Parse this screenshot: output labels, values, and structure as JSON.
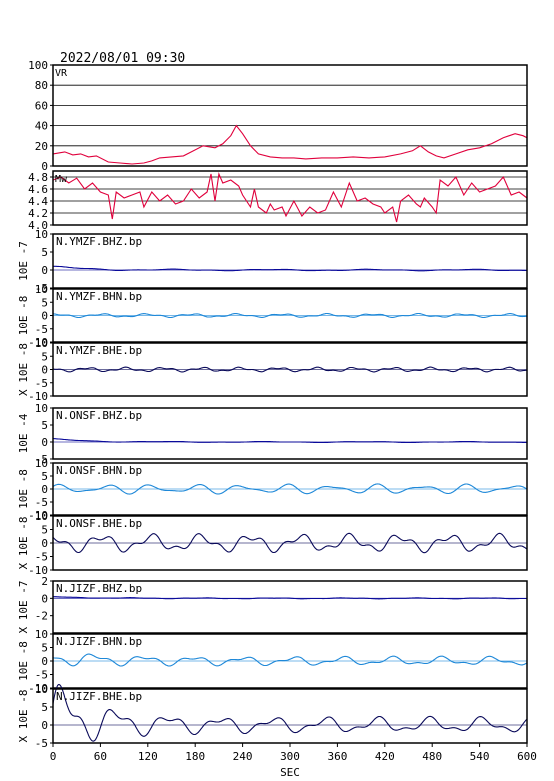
{
  "header": {
    "timestamp": "2022/08/01 09:30"
  },
  "x_axis": {
    "label": "SEC",
    "ticks": [
      0,
      60,
      120,
      180,
      240,
      300,
      360,
      420,
      480,
      540,
      600
    ],
    "range": [
      0,
      600
    ]
  },
  "colors": {
    "frame": "#000000",
    "grid": "#000000",
    "vr_mw": "#e0003c",
    "bhz": "#0a0a9a",
    "bhn": "#1e88d8",
    "bhe": "#0a0a5a"
  },
  "chart_data": [
    {
      "type": "line",
      "label": "VR",
      "ylim": [
        0,
        100
      ],
      "yticks": [
        "0",
        "20",
        "40",
        "60",
        "80",
        "100"
      ],
      "grid": true,
      "color_key": "vr_mw",
      "series": [
        {
          "x": [
            0,
            15,
            25,
            35,
            45,
            55,
            70,
            85,
            100,
            115,
            125,
            135,
            150,
            165,
            175,
            190,
            205,
            215,
            225,
            232,
            240,
            250,
            260,
            275,
            290,
            305,
            320,
            340,
            360,
            380,
            400,
            420,
            440,
            455,
            465,
            475,
            485,
            495,
            510,
            525,
            540,
            555,
            570,
            585,
            595,
            600
          ],
          "y": [
            12,
            14,
            11,
            12,
            9,
            10,
            4,
            3,
            2,
            3,
            5,
            8,
            9,
            10,
            14,
            20,
            18,
            22,
            30,
            40,
            32,
            20,
            12,
            9,
            8,
            8,
            7,
            8,
            8,
            9,
            8,
            9,
            12,
            15,
            20,
            14,
            10,
            8,
            12,
            16,
            18,
            22,
            28,
            32,
            30,
            28
          ]
        }
      ]
    },
    {
      "type": "line",
      "label": "Mw",
      "ylim": [
        4.0,
        4.9
      ],
      "yticks": [
        "4.0",
        "4.2",
        "4.4",
        "4.6",
        "4.8"
      ],
      "grid": true,
      "color_key": "vr_mw",
      "series": [
        {
          "x": [
            0,
            10,
            20,
            30,
            40,
            50,
            60,
            70,
            75,
            80,
            90,
            100,
            110,
            115,
            125,
            135,
            145,
            155,
            165,
            175,
            185,
            195,
            200,
            205,
            210,
            215,
            225,
            235,
            240,
            250,
            255,
            260,
            270,
            275,
            280,
            290,
            295,
            305,
            315,
            325,
            335,
            345,
            355,
            365,
            375,
            385,
            395,
            405,
            415,
            420,
            430,
            435,
            440,
            450,
            460,
            465,
            470,
            480,
            485,
            490,
            500,
            510,
            520,
            530,
            540,
            550,
            560,
            570,
            580,
            590,
            600
          ],
          "y": [
            4.75,
            4.8,
            4.7,
            4.78,
            4.6,
            4.7,
            4.55,
            4.5,
            4.1,
            4.55,
            4.45,
            4.5,
            4.55,
            4.3,
            4.55,
            4.4,
            4.5,
            4.35,
            4.4,
            4.6,
            4.45,
            4.55,
            4.85,
            4.4,
            4.85,
            4.7,
            4.75,
            4.65,
            4.5,
            4.3,
            4.6,
            4.3,
            4.2,
            4.35,
            4.25,
            4.3,
            4.15,
            4.4,
            4.15,
            4.3,
            4.2,
            4.25,
            4.55,
            4.3,
            4.7,
            4.4,
            4.45,
            4.35,
            4.3,
            4.2,
            4.3,
            4.05,
            4.4,
            4.5,
            4.35,
            4.3,
            4.45,
            4.3,
            4.2,
            4.75,
            4.65,
            4.8,
            4.5,
            4.7,
            4.55,
            4.6,
            4.65,
            4.8,
            4.5,
            4.55,
            4.45
          ]
        }
      ]
    },
    {
      "type": "waveform",
      "station_label": "N.YMZF.BHZ.bp",
      "exponent_label": "10E -7",
      "ylim": [
        -5,
        10
      ],
      "yticks": [
        "-5",
        "0",
        "5",
        "10"
      ],
      "color_key": "bhz",
      "wave": {
        "base": 0,
        "amp": 0.15,
        "f1": 0.05,
        "f2": 0.13,
        "env_start": 1.5,
        "env_decay": 40,
        "ph": 0.3
      }
    },
    {
      "type": "waveform",
      "station_label": "N.YMZF.BHN.bp",
      "exponent_label": "10E -8",
      "ylim": [
        -10,
        10
      ],
      "yticks": [
        "-10",
        "-5",
        "0",
        "5",
        "10"
      ],
      "color_key": "bhn",
      "wave": {
        "base": 0,
        "amp": 0.5,
        "f1": 0.11,
        "f2": 0.27,
        "env_start": 0,
        "env_decay": 0,
        "ph": 1.1
      }
    },
    {
      "type": "waveform",
      "station_label": "N.YMZF.BHE.bp",
      "exponent_label": "X 10E -8",
      "ylim": [
        -10,
        10
      ],
      "yticks": [
        "-10",
        "-5",
        "0",
        "5",
        "10"
      ],
      "color_key": "bhe",
      "wave": {
        "base": 0,
        "amp": 0.6,
        "f1": 0.13,
        "f2": 0.31,
        "env_start": 0,
        "env_decay": 0,
        "ph": 2.2
      }
    },
    {
      "type": "waveform",
      "station_label": "N.ONSF.BHZ.bp",
      "exponent_label": "10E -4",
      "ylim": [
        -5,
        10
      ],
      "yticks": [
        "-5",
        "0",
        "5",
        "10"
      ],
      "color_key": "bhz",
      "wave": {
        "base": 0,
        "amp": 0.1,
        "f1": 0.05,
        "f2": 0.12,
        "env_start": 1.4,
        "env_decay": 45,
        "ph": 0.7
      }
    },
    {
      "type": "waveform",
      "station_label": "N.ONSF.BHN.bp",
      "exponent_label": "10E -8",
      "ylim": [
        -10,
        10
      ],
      "yticks": [
        "-10",
        "-5",
        "0",
        "5",
        "10"
      ],
      "color_key": "bhn",
      "wave": {
        "base": 0,
        "amp": 1.3,
        "f1": 0.11,
        "f2": 0.17,
        "env_start": 0,
        "env_decay": 0,
        "ph": 0.4
      }
    },
    {
      "type": "waveform",
      "station_label": "N.ONSF.BHE.bp",
      "exponent_label": "X 10E -8",
      "ylim": [
        -10,
        10
      ],
      "yticks": [
        "-10",
        "-5",
        "0",
        "5",
        "10"
      ],
      "color_key": "bhe",
      "wave": {
        "base": 0,
        "amp": 2.4,
        "f1": 0.1,
        "f2": 0.23,
        "env_start": 0,
        "env_decay": 0,
        "ph": 1.7
      }
    },
    {
      "type": "waveform",
      "station_label": "N.JIZF.BHZ.bp",
      "exponent_label": "X 10E -7",
      "ylim": [
        -4,
        2
      ],
      "yticks": [
        "-2",
        "0",
        "2"
      ],
      "color_key": "bhz",
      "wave": {
        "base": 0,
        "amp": 0.04,
        "f1": 0.07,
        "f2": 0.19,
        "env_start": 0.3,
        "env_decay": 50,
        "ph": 0.9
      }
    },
    {
      "type": "waveform",
      "station_label": "N.JIZF.BHN.bp",
      "exponent_label": "10E -8",
      "ylim": [
        -10,
        10
      ],
      "yticks": [
        "-10",
        "-5",
        "0",
        "5",
        "10"
      ],
      "color_key": "bhn",
      "wave": {
        "base": 0,
        "amp": 1.2,
        "f1": 0.1,
        "f2": 0.21,
        "env_start": 1.8,
        "env_decay": 70,
        "ph": 2.6
      }
    },
    {
      "type": "waveform",
      "station_label": "N.JIZF.BHE.bp",
      "exponent_label": "X 10E -8",
      "ylim": [
        -5,
        10
      ],
      "yticks": [
        "-5",
        "0",
        "5",
        "10"
      ],
      "color_key": "bhe",
      "wave": {
        "base": 0,
        "amp": 1.6,
        "f1": 0.095,
        "f2": 0.2,
        "env_start": 4.8,
        "env_decay": 55,
        "ph": 0.2
      }
    }
  ]
}
